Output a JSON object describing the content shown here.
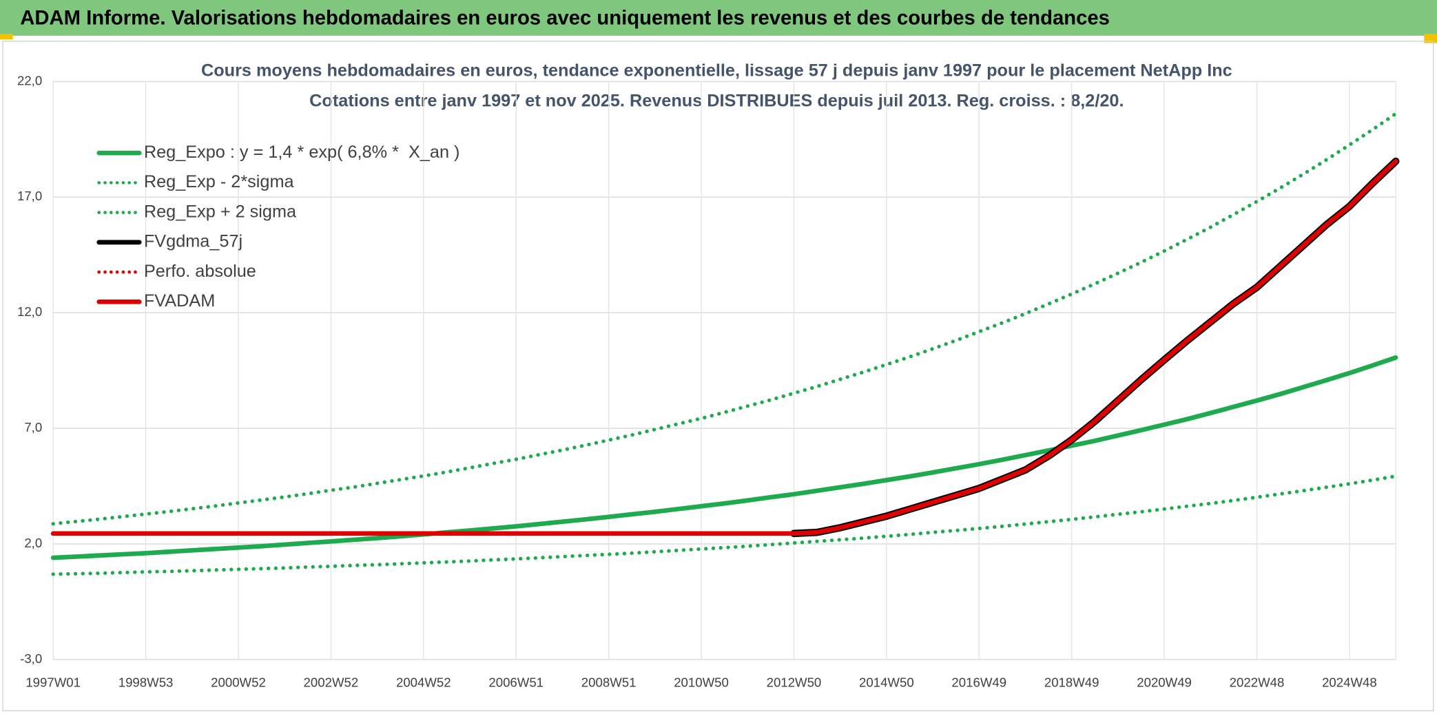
{
  "header": {
    "title": "ADAM Informe. Valorisations hebdomadaires en euros avec uniquement les revenus et des courbes de tendances"
  },
  "chart_data": {
    "type": "line",
    "title": "Cours moyens hebdomadaires en euros, tendance exponentielle, lissage 57 j depuis janv 1997 pour le placement NetApp Inc",
    "subtitle": "Cotations entre janv 1997 et nov 2025. Revenus DISTRIBUES depuis juil 2013. Reg. croiss. : 8,2/20.",
    "categories": [
      "1997W01",
      null,
      null,
      null,
      "1998W53",
      null,
      null,
      null,
      "2000W52",
      null,
      null,
      null,
      "2002W52",
      null,
      null,
      null,
      "2004W52",
      null,
      null,
      null,
      "2006W51",
      null,
      null,
      null,
      "2008W51",
      null,
      null,
      null,
      "2010W50",
      null,
      null,
      null,
      "2012W50",
      null,
      null,
      null,
      "2014W50",
      null,
      null,
      null,
      "2016W49",
      null,
      null,
      null,
      "2018W49",
      null,
      null,
      null,
      "2020W49",
      null,
      null,
      null,
      "2022W48",
      null,
      null,
      null,
      "2024W48",
      null,
      null
    ],
    "ylim": [
      -3,
      22
    ],
    "yticks": [
      {
        "value": -3,
        "label": "-3,0"
      },
      {
        "value": 2,
        "label": "2,0"
      },
      {
        "value": 7,
        "label": "7,0"
      },
      {
        "value": 12,
        "label": "12,0"
      },
      {
        "value": 17,
        "label": "17,0"
      },
      {
        "value": 22,
        "label": "22,0"
      }
    ],
    "grid": true,
    "legend": "top-left",
    "series": [
      {
        "name": "Reg_Expo : y = 1,4 * exp( 6,8% *  X_an )",
        "color": "#1faa4f",
        "style": "solid",
        "values": [
          1.4,
          1.45,
          1.5,
          1.55,
          1.6,
          1.66,
          1.72,
          1.78,
          1.84,
          1.9,
          1.97,
          2.04,
          2.11,
          2.18,
          2.25,
          2.33,
          2.41,
          2.5,
          2.58,
          2.67,
          2.76,
          2.86,
          2.96,
          3.06,
          3.17,
          3.28,
          3.39,
          3.51,
          3.63,
          3.75,
          3.88,
          4.02,
          4.15,
          4.3,
          4.45,
          4.6,
          4.76,
          4.92,
          5.09,
          5.27,
          5.45,
          5.64,
          5.84,
          6.04,
          6.25,
          6.46,
          6.69,
          6.92,
          7.16,
          7.4,
          7.66,
          7.93,
          8.2,
          8.48,
          8.78,
          9.08,
          9.39,
          9.72,
          10.06
        ]
      },
      {
        "name": "Reg_Exp - 2*sigma",
        "color": "#1faa4f",
        "style": "dotted",
        "values": [
          0.69,
          0.71,
          0.73,
          0.76,
          0.79,
          0.81,
          0.84,
          0.87,
          0.9,
          0.93,
          0.96,
          1.0,
          1.03,
          1.07,
          1.1,
          1.14,
          1.18,
          1.22,
          1.26,
          1.31,
          1.35,
          1.4,
          1.45,
          1.5,
          1.55,
          1.6,
          1.66,
          1.72,
          1.78,
          1.84,
          1.9,
          1.97,
          2.04,
          2.11,
          2.18,
          2.25,
          2.33,
          2.41,
          2.5,
          2.58,
          2.67,
          2.76,
          2.86,
          2.96,
          3.06,
          3.17,
          3.28,
          3.39,
          3.51,
          3.63,
          3.75,
          3.88,
          4.02,
          4.16,
          4.3,
          4.45,
          4.6,
          4.76,
          4.93
        ]
      },
      {
        "name": "Reg_Exp + 2 sigma",
        "color": "#1faa4f",
        "style": "dotted",
        "values": [
          2.87,
          2.97,
          3.07,
          3.18,
          3.29,
          3.4,
          3.52,
          3.64,
          3.77,
          3.9,
          4.03,
          4.17,
          4.32,
          4.46,
          4.62,
          4.78,
          4.94,
          5.11,
          5.29,
          5.48,
          5.66,
          5.86,
          6.06,
          6.27,
          6.49,
          6.71,
          6.95,
          7.19,
          7.43,
          7.69,
          7.96,
          8.23,
          8.52,
          8.81,
          9.12,
          9.43,
          9.76,
          10.09,
          10.44,
          10.8,
          11.18,
          11.56,
          11.96,
          12.38,
          12.81,
          13.25,
          13.71,
          14.18,
          14.67,
          15.18,
          15.7,
          16.25,
          16.81,
          17.39,
          17.99,
          18.61,
          19.26,
          19.92,
          20.61
        ]
      },
      {
        "name": "FVgdma_57j",
        "color": "#000000",
        "style": "solid",
        "values": [
          null,
          null,
          null,
          null,
          null,
          null,
          null,
          null,
          null,
          null,
          null,
          null,
          null,
          null,
          null,
          null,
          null,
          null,
          null,
          null,
          null,
          null,
          null,
          null,
          null,
          null,
          null,
          null,
          null,
          null,
          null,
          null,
          2.45,
          2.5,
          2.7,
          2.95,
          3.2,
          3.5,
          3.8,
          4.1,
          4.4,
          4.8,
          5.2,
          5.8,
          6.5,
          7.3,
          8.2,
          9.1,
          9.96,
          10.8,
          11.6,
          12.4,
          13.1,
          14.0,
          14.9,
          15.8,
          16.6,
          17.6,
          18.55
        ]
      },
      {
        "name": "Perfo. absolue",
        "color": "#e00000",
        "style": "dotted",
        "values": [
          2.45,
          2.45,
          2.45,
          2.45,
          2.45,
          2.45,
          2.45,
          2.45,
          2.45,
          2.45,
          2.45,
          2.45,
          2.45,
          2.45,
          2.45,
          2.45,
          2.45,
          2.45,
          2.45,
          2.45,
          2.45,
          2.45,
          2.45,
          2.45,
          2.45,
          2.45,
          2.45,
          2.45,
          2.45,
          2.45,
          2.45,
          2.45,
          2.45,
          2.5,
          2.7,
          2.95,
          3.2,
          3.5,
          3.8,
          4.1,
          4.4,
          4.8,
          5.2,
          5.8,
          6.5,
          7.3,
          8.2,
          9.1,
          9.96,
          10.8,
          11.6,
          12.4,
          13.1,
          14.0,
          14.9,
          15.8,
          16.6,
          17.6,
          18.55
        ]
      },
      {
        "name": "FVADAM",
        "color": "#e00000",
        "style": "solid",
        "values": [
          2.45,
          2.45,
          2.45,
          2.45,
          2.45,
          2.45,
          2.45,
          2.45,
          2.45,
          2.45,
          2.45,
          2.45,
          2.45,
          2.45,
          2.45,
          2.45,
          2.45,
          2.45,
          2.45,
          2.45,
          2.45,
          2.45,
          2.45,
          2.45,
          2.45,
          2.45,
          2.45,
          2.45,
          2.45,
          2.45,
          2.45,
          2.45,
          2.45,
          2.5,
          2.7,
          2.95,
          3.2,
          3.5,
          3.8,
          4.1,
          4.4,
          4.8,
          5.2,
          5.8,
          6.5,
          7.3,
          8.2,
          9.1,
          9.96,
          10.8,
          11.6,
          12.4,
          13.1,
          14.0,
          14.9,
          15.8,
          16.6,
          17.6,
          18.55
        ]
      }
    ]
  }
}
